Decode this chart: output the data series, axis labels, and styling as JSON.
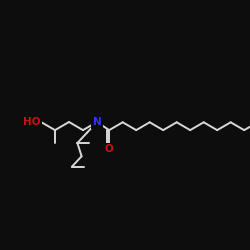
{
  "bg_color": "#0d0d0d",
  "bond_color": "#d8d8d8",
  "atom_colors": {
    "N": "#3333ff",
    "O": "#cc1111"
  },
  "bond_lw": 1.4,
  "font_size": 7.5
}
